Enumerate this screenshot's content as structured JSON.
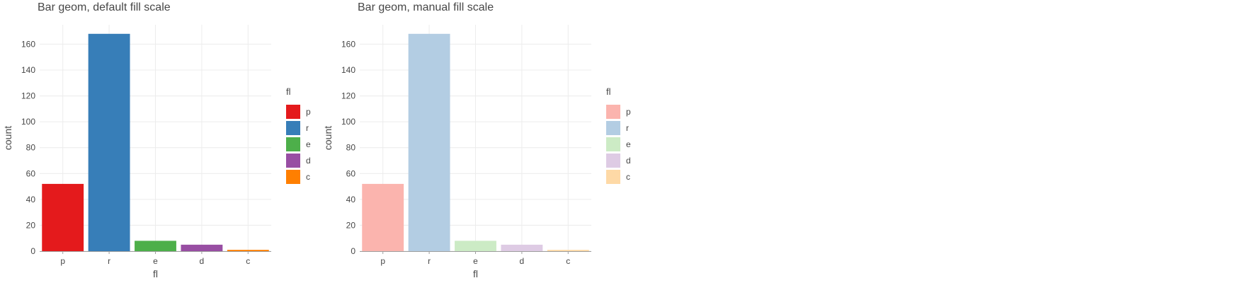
{
  "chart_data": [
    {
      "type": "bar",
      "title": "Bar geom, default fill scale",
      "xlabel": "fl",
      "ylabel": "count",
      "categories": [
        "p",
        "r",
        "e",
        "d",
        "c"
      ],
      "values": [
        52,
        168,
        8,
        5,
        1
      ],
      "ylim": [
        0,
        175
      ],
      "yticks": [
        0,
        20,
        40,
        60,
        80,
        100,
        120,
        140,
        160
      ],
      "grid": true,
      "legend": {
        "title": "fl",
        "position": "right",
        "entries": [
          "p",
          "r",
          "e",
          "d",
          "c"
        ]
      },
      "colors": [
        "#e41a1c",
        "#377eb8",
        "#4daf4a",
        "#984ea3",
        "#ff7f00"
      ]
    },
    {
      "type": "bar",
      "title": "Bar geom, manual fill scale",
      "xlabel": "fl",
      "ylabel": "count",
      "categories": [
        "p",
        "r",
        "e",
        "d",
        "c"
      ],
      "values": [
        52,
        168,
        8,
        5,
        1
      ],
      "ylim": [
        0,
        175
      ],
      "yticks": [
        0,
        20,
        40,
        60,
        80,
        100,
        120,
        140,
        160
      ],
      "grid": true,
      "legend": {
        "title": "fl",
        "position": "right",
        "entries": [
          "p",
          "r",
          "e",
          "d",
          "c"
        ]
      },
      "colors": [
        "#fbb4ae",
        "#b3cde3",
        "#ccebc5",
        "#decbe4",
        "#fed9a6"
      ]
    }
  ]
}
